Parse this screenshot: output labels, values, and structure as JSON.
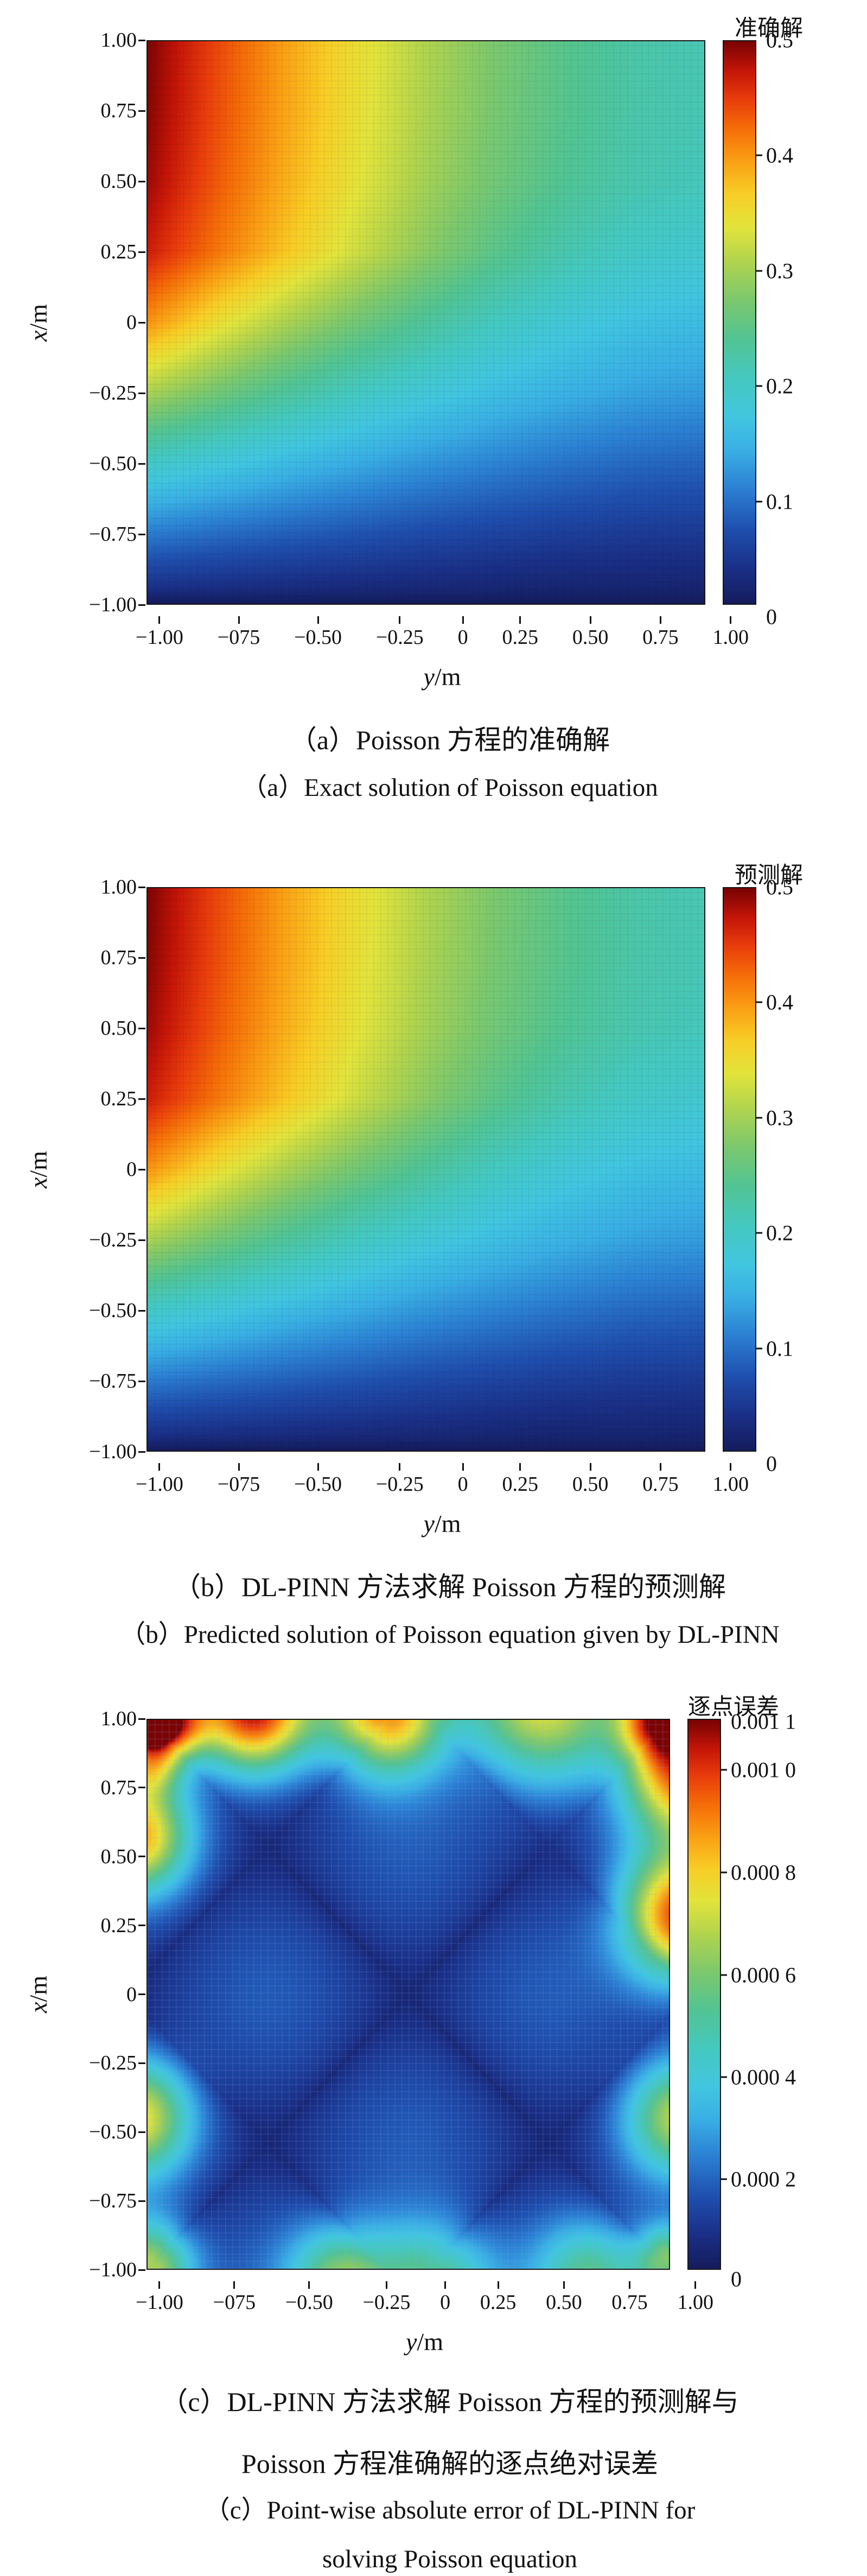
{
  "chart_data": [
    {
      "panel": "a",
      "type": "heatmap",
      "colormap": "jet",
      "colorbar_title": "准确解",
      "caption_zh": "（a）Poisson 方程的准确解",
      "caption_en": "（a）Exact solution of Poisson equation",
      "xlabel_var": "y",
      "xlabel_unit": "/m",
      "ylabel_var": "x",
      "ylabel_unit": "/m",
      "x_range": [
        -1,
        1
      ],
      "y_range": [
        -1,
        1
      ],
      "x_ticks": [
        "−1.00",
        "−075",
        "−0.50",
        "−0.25",
        "0",
        "0.25",
        "0.50",
        "0.75",
        "1.00"
      ],
      "y_ticks": [
        "1.00",
        "0.75",
        "0.50",
        "0.25",
        "0",
        "−0.25",
        "−0.50",
        "−0.75",
        "−1.00"
      ],
      "value_min": 0,
      "value_max": 0.5,
      "colorbar_ticks": [
        "0.5",
        "0.4",
        "0.3",
        "0.2",
        "0.1",
        "0"
      ],
      "grid": {
        "row_coords_x": [
          1,
          0.75,
          0.5,
          0.25,
          0,
          -0.25,
          -0.5,
          -0.75,
          -0.95,
          -1
        ],
        "col_coords_y": [
          -1,
          -0.75,
          -0.5,
          -0.25,
          0,
          0.25,
          0.5,
          0.75,
          1
        ],
        "values": [
          [
            0.498,
            0.443,
            0.391,
            0.346,
            0.304,
            0.269,
            0.241,
            0.22,
            0.209
          ],
          [
            0.495,
            0.44,
            0.389,
            0.344,
            0.302,
            0.267,
            0.24,
            0.218,
            0.208
          ],
          [
            0.488,
            0.433,
            0.383,
            0.338,
            0.296,
            0.261,
            0.234,
            0.213,
            0.203
          ],
          [
            0.469,
            0.417,
            0.368,
            0.322,
            0.28,
            0.243,
            0.213,
            0.192,
            0.182
          ],
          [
            0.4,
            0.345,
            0.3,
            0.262,
            0.228,
            0.198,
            0.175,
            0.16,
            0.152
          ],
          [
            0.3,
            0.262,
            0.228,
            0.198,
            0.175,
            0.155,
            0.14,
            0.128,
            0.122
          ],
          [
            0.193,
            0.172,
            0.151,
            0.134,
            0.118,
            0.105,
            0.094,
            0.085,
            0.081
          ],
          [
            0.1,
            0.089,
            0.079,
            0.07,
            0.061,
            0.054,
            0.048,
            0.044,
            0.043
          ],
          [
            0.031,
            0.027,
            0.024,
            0.021,
            0.019,
            0.016,
            0.014,
            0.014,
            0.013
          ],
          [
            0,
            0,
            0,
            0,
            0,
            0,
            0,
            0,
            0
          ]
        ]
      }
    },
    {
      "panel": "b",
      "type": "heatmap",
      "colormap": "jet",
      "colorbar_title": "预测解",
      "caption_zh": "（b）DL-PINN 方法求解 Poisson 方程的预测解",
      "caption_en": "（b）Predicted solution of Poisson equation given by DL-PINN",
      "xlabel_var": "y",
      "xlabel_unit": "/m",
      "ylabel_var": "x",
      "ylabel_unit": "/m",
      "x_range": [
        -1,
        1
      ],
      "y_range": [
        -1,
        1
      ],
      "x_ticks": [
        "−1.00",
        "−075",
        "−0.50",
        "−0.25",
        "0",
        "0.25",
        "0.50",
        "0.75",
        "1.00"
      ],
      "y_ticks": [
        "1.00",
        "0.75",
        "0.50",
        "0.25",
        "0",
        "−0.25",
        "−0.50",
        "−0.75",
        "−1.00"
      ],
      "value_min": 0,
      "value_max": 0.5,
      "colorbar_ticks": [
        "0.5",
        "0.4",
        "0.3",
        "0.2",
        "0.1",
        "0"
      ],
      "grid": {
        "row_coords_x": [
          1,
          0.75,
          0.5,
          0.25,
          0,
          -0.25,
          -0.5,
          -0.75,
          -0.95,
          -1
        ],
        "col_coords_y": [
          -1,
          -0.75,
          -0.5,
          -0.25,
          0,
          0.25,
          0.5,
          0.75,
          1
        ],
        "values": [
          [
            0.498,
            0.443,
            0.391,
            0.346,
            0.304,
            0.269,
            0.241,
            0.22,
            0.209
          ],
          [
            0.495,
            0.44,
            0.389,
            0.344,
            0.302,
            0.267,
            0.24,
            0.218,
            0.208
          ],
          [
            0.488,
            0.433,
            0.383,
            0.338,
            0.296,
            0.261,
            0.234,
            0.213,
            0.203
          ],
          [
            0.469,
            0.417,
            0.368,
            0.322,
            0.28,
            0.243,
            0.213,
            0.192,
            0.182
          ],
          [
            0.4,
            0.345,
            0.3,
            0.262,
            0.228,
            0.198,
            0.175,
            0.16,
            0.152
          ],
          [
            0.3,
            0.262,
            0.228,
            0.198,
            0.175,
            0.155,
            0.14,
            0.128,
            0.122
          ],
          [
            0.193,
            0.172,
            0.151,
            0.134,
            0.118,
            0.105,
            0.094,
            0.085,
            0.081
          ],
          [
            0.1,
            0.089,
            0.079,
            0.07,
            0.061,
            0.054,
            0.048,
            0.044,
            0.043
          ],
          [
            0.031,
            0.027,
            0.024,
            0.021,
            0.019,
            0.016,
            0.014,
            0.014,
            0.013
          ],
          [
            0,
            0,
            0,
            0,
            0,
            0,
            0,
            0,
            0
          ]
        ]
      }
    },
    {
      "panel": "c",
      "type": "heatmap",
      "colormap": "jet",
      "colorbar_title": "逐点误差",
      "caption_zh_lines": [
        "（c）DL-PINN 方法求解 Poisson 方程的预测解与",
        "Poisson 方程准确解的逐点绝对误差"
      ],
      "caption_en_lines": [
        "（c）Point-wise absolute error of DL-PINN for",
        "solving Poisson equation"
      ],
      "xlabel_var": "y",
      "xlabel_unit": "/m",
      "ylabel_var": "x",
      "ylabel_unit": "/m",
      "x_range": [
        -1,
        1
      ],
      "y_range": [
        -1,
        1
      ],
      "x_ticks": [
        "−1.00",
        "−075",
        "−0.50",
        "−0.25",
        "0",
        "0.25",
        "0.50",
        "0.75",
        "1.00"
      ],
      "y_ticks": [
        "1.00",
        "0.75",
        "0.50",
        "0.25",
        "0",
        "−0.25",
        "−0.50",
        "−0.75",
        "−1.00"
      ],
      "value_min": 0,
      "value_max": 0.0011,
      "colorbar_ticks": [
        "0.001 1",
        "0.001 0",
        "0.000 8",
        "0.000 6",
        "0.000 4",
        "0.000 2",
        "0"
      ],
      "background_level": 0.00016,
      "error_peaks": [
        {
          "y": -1.0,
          "x": 1.0,
          "amp": 0.00115,
          "sigma": 0.055
        },
        {
          "y": -0.9,
          "x": 1.0,
          "amp": 0.00072,
          "sigma": 0.09
        },
        {
          "y": -1.0,
          "x": 0.86,
          "amp": 0.00055,
          "sigma": 0.09
        },
        {
          "y": -0.6,
          "x": 1.04,
          "amp": 0.0009,
          "sigma": 0.155
        },
        {
          "y": -0.08,
          "x": 1.04,
          "amp": 0.00084,
          "sigma": 0.165
        },
        {
          "y": 0.52,
          "x": 1.07,
          "amp": 0.00058,
          "sigma": 0.21
        },
        {
          "y": 0.97,
          "x": 1.02,
          "amp": 0.00078,
          "sigma": 0.11
        },
        {
          "y": 1.06,
          "x": 0.8,
          "amp": 0.00078,
          "sigma": 0.16
        },
        {
          "y": 1.06,
          "x": 0.28,
          "amp": 0.00088,
          "sigma": 0.17
        },
        {
          "y": 1.05,
          "x": -0.45,
          "amp": 0.00054,
          "sigma": 0.15
        },
        {
          "y": 1.0,
          "x": -0.97,
          "amp": 0.0005,
          "sigma": 0.09
        },
        {
          "y": -1.05,
          "x": 0.58,
          "amp": 0.00072,
          "sigma": 0.145
        },
        {
          "y": -1.05,
          "x": -0.45,
          "amp": 0.00062,
          "sigma": 0.15
        },
        {
          "y": -1.0,
          "x": -1.0,
          "amp": 0.00062,
          "sigma": 0.12
        },
        {
          "y": -0.25,
          "x": -1.05,
          "amp": 0.0005,
          "sigma": 0.15
        },
        {
          "y": 0.1,
          "x": -1.06,
          "amp": 0.00046,
          "sigma": 0.16
        },
        {
          "y": 0.7,
          "x": -1.04,
          "amp": 0.0004,
          "sigma": 0.15
        }
      ]
    }
  ]
}
